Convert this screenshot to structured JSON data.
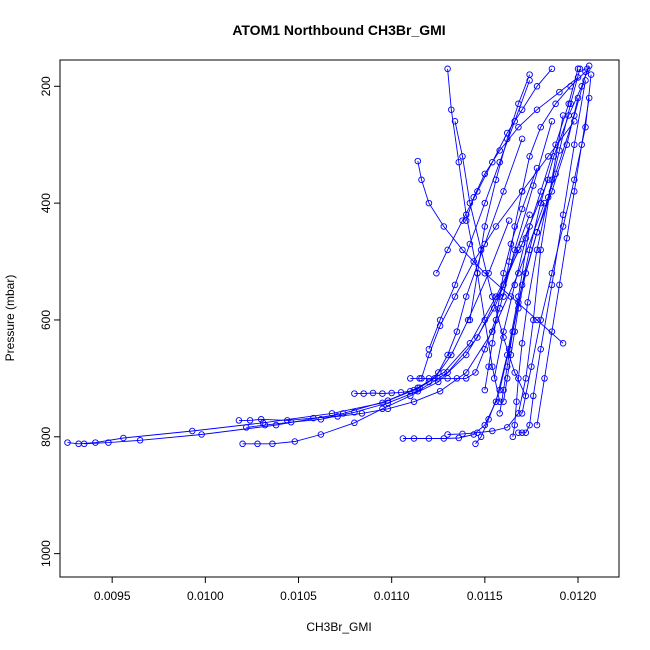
{
  "chart_data": {
    "type": "scatter",
    "title": "ATOM1 Northbound CH3Br_GMI",
    "xlabel": "CH3Br_GMI",
    "ylabel": "Pressure (mbar)",
    "xlim": [
      0.00922,
      0.01222
    ],
    "ylim": [
      1040,
      155
    ],
    "y_reversed": true,
    "grid": false,
    "legend": "none",
    "color": "#0000ff",
    "marker": "open-circle",
    "connected_lines": true,
    "x_ticks": [
      "0.0095",
      "0.0100",
      "0.0105",
      "0.0110",
      "0.0115",
      "0.0120"
    ],
    "x_tick_values": [
      0.0095,
      0.01,
      0.0105,
      0.011,
      0.0115,
      0.012
    ],
    "y_ticks": [
      "200",
      "400",
      "600",
      "800",
      "1000"
    ],
    "y_tick_values": [
      200,
      400,
      600,
      800,
      1000
    ],
    "series": [
      {
        "x": [
          0.00926,
          0.00932,
          0.00941,
          0.00956,
          0.00993,
          0.01031,
          0.01068,
          0.01095,
          0.01112,
          0.01123,
          0.01132,
          0.01141,
          0.01152,
          0.01163
        ],
        "y": [
          810,
          812,
          810,
          802,
          790,
          776,
          760,
          742,
          720,
          700,
          660,
          600,
          520,
          430
        ]
      },
      {
        "x": [
          0.00935,
          0.00948,
          0.00965,
          0.00998,
          0.01038,
          0.01074,
          0.01098,
          0.01114,
          0.01128,
          0.01142,
          0.01156,
          0.0117,
          0.01184
        ],
        "y": [
          812,
          810,
          806,
          796,
          780,
          760,
          738,
          716,
          690,
          640,
          560,
          470,
          360
        ]
      },
      {
        "x": [
          0.0102,
          0.01028,
          0.01036,
          0.01048,
          0.01062,
          0.0108,
          0.01095,
          0.0111,
          0.01125,
          0.0114,
          0.01155,
          0.01168
        ],
        "y": [
          812,
          812,
          812,
          808,
          796,
          776,
          752,
          730,
          706,
          660,
          580,
          480
        ]
      },
      {
        "x": [
          0.01018,
          0.01024,
          0.0103,
          0.01044,
          0.01058,
          0.01071,
          0.01084,
          0.01098,
          0.01112,
          0.01126,
          0.0114,
          0.01154,
          0.01168,
          0.01182
        ],
        "y": [
          772,
          772,
          770,
          772,
          768,
          765,
          760,
          752,
          740,
          722,
          690,
          620,
          520,
          400
        ]
      },
      {
        "x": [
          0.01022,
          0.01032,
          0.01046,
          0.01062,
          0.0108,
          0.01098,
          0.01114,
          0.0113,
          0.01146,
          0.0116,
          0.01174
        ],
        "y": [
          784,
          780,
          775,
          770,
          758,
          742,
          722,
          690,
          630,
          540,
          420
        ]
      },
      {
        "x": [
          0.0108,
          0.01085,
          0.0109,
          0.01095,
          0.011,
          0.01105,
          0.0111,
          0.01115,
          0.0112,
          0.01125,
          0.0113,
          0.01135,
          0.0114,
          0.0115,
          0.0116,
          0.0117
        ],
        "y": [
          726,
          726,
          725,
          726,
          725,
          724,
          722,
          716,
          706,
          690,
          660,
          620,
          560,
          470,
          380,
          290
        ]
      },
      {
        "x": [
          0.0111,
          0.01115,
          0.0112,
          0.01125,
          0.0113,
          0.01135,
          0.0114,
          0.01145,
          0.0115,
          0.01158,
          0.01166,
          0.01176,
          0.01186
        ],
        "y": [
          700,
          700,
          700,
          700,
          700,
          700,
          700,
          690,
          650,
          580,
          480,
          370,
          260
        ]
      },
      {
        "x": [
          0.01106,
          0.01112,
          0.0112,
          0.01128,
          0.01136,
          0.01144,
          0.0115,
          0.01156,
          0.01162,
          0.01168,
          0.01174
        ],
        "y": [
          803,
          803,
          803,
          803,
          802,
          796,
          780,
          740,
          660,
          560,
          440
        ]
      },
      {
        "x": [
          0.0113,
          0.01138,
          0.01146,
          0.01154,
          0.01162,
          0.01168,
          0.01172,
          0.01176,
          0.0118,
          0.01186,
          0.01192
        ],
        "y": [
          796,
          795,
          793,
          790,
          784,
          760,
          700,
          600,
          480,
          360,
          250
        ]
      },
      {
        "x": [
          0.01145,
          0.01148,
          0.01152,
          0.01158,
          0.01163,
          0.01168,
          0.01174,
          0.0118,
          0.01187,
          0.01195,
          0.01202,
          0.01206
        ],
        "y": [
          812,
          800,
          770,
          720,
          650,
          570,
          480,
          400,
          320,
          250,
          200,
          165
        ]
      },
      {
        "x": [
          0.01165,
          0.01166,
          0.01167,
          0.01168,
          0.0117,
          0.01173,
          0.01178,
          0.01184,
          0.0119,
          0.01196,
          0.01201
        ],
        "y": [
          800,
          780,
          740,
          700,
          640,
          570,
          480,
          390,
          310,
          230,
          170
        ]
      },
      {
        "x": [
          0.01168,
          0.0117,
          0.01172,
          0.01174,
          0.01176,
          0.0118,
          0.01186,
          0.01192,
          0.01198,
          0.01204
        ],
        "y": [
          793,
          793,
          793,
          780,
          730,
          650,
          540,
          420,
          300,
          190
        ]
      },
      {
        "x": [
          0.01158,
          0.0116,
          0.01162,
          0.01165,
          0.0117,
          0.01178,
          0.01188,
          0.01198,
          0.01205
        ],
        "y": [
          760,
          720,
          680,
          620,
          540,
          450,
          350,
          250,
          170
        ]
      },
      {
        "x": [
          0.01114,
          0.01116,
          0.0112,
          0.01128,
          0.01138,
          0.0115,
          0.01164,
          0.01178,
          0.01192
        ],
        "y": [
          328,
          360,
          400,
          440,
          480,
          520,
          560,
          600,
          640
        ]
      },
      {
        "x": [
          0.0113,
          0.01132,
          0.01136,
          0.0114,
          0.01146,
          0.0115,
          0.01154,
          0.01158
        ],
        "y": [
          170,
          240,
          330,
          420,
          520,
          600,
          680,
          740
        ]
      },
      {
        "x": [
          0.01134,
          0.01138,
          0.01142,
          0.01148,
          0.01154,
          0.0116,
          0.01166,
          0.01172
        ],
        "y": [
          260,
          320,
          400,
          480,
          560,
          630,
          690,
          730
        ]
      },
      {
        "x": [
          0.01155,
          0.0116,
          0.01166,
          0.01172,
          0.0118,
          0.01188,
          0.01195,
          0.012
        ],
        "y": [
          700,
          620,
          540,
          460,
          380,
          300,
          230,
          170
        ]
      },
      {
        "x": [
          0.0117,
          0.01175,
          0.0118,
          0.01186,
          0.01192,
          0.01198,
          0.01204,
          0.01207
        ],
        "y": [
          760,
          680,
          600,
          520,
          440,
          360,
          270,
          180
        ]
      },
      {
        "x": [
          0.01142,
          0.01146,
          0.0115,
          0.01156,
          0.01162,
          0.01168,
          0.01174
        ],
        "y": [
          600,
          520,
          440,
          360,
          290,
          230,
          180
        ]
      },
      {
        "x": [
          0.0112,
          0.01126,
          0.01134,
          0.01142,
          0.0115,
          0.01158,
          0.01166,
          0.01174
        ],
        "y": [
          650,
          600,
          540,
          470,
          400,
          330,
          260,
          190
        ]
      },
      {
        "x": [
          0.0116,
          0.01162,
          0.01164,
          0.01166,
          0.01168,
          0.01172,
          0.01178,
          0.01186,
          0.01194,
          0.012
        ],
        "y": [
          740,
          700,
          660,
          620,
          580,
          520,
          450,
          380,
          300,
          220
        ]
      },
      {
        "x": [
          0.01178,
          0.01182,
          0.01186,
          0.0119,
          0.01194,
          0.01198,
          0.01202,
          0.01206
        ],
        "y": [
          780,
          700,
          620,
          540,
          460,
          380,
          300,
          220
        ]
      },
      {
        "x": [
          0.0115,
          0.01152,
          0.01154,
          0.01156,
          0.01158,
          0.0116,
          0.01164,
          0.0117,
          0.01178
        ],
        "y": [
          720,
          680,
          640,
          600,
          560,
          520,
          470,
          410,
          340
        ]
      },
      {
        "x": [
          0.01124,
          0.0113,
          0.01138,
          0.01146,
          0.01154,
          0.01162,
          0.0117,
          0.01178,
          0.01186
        ],
        "y": [
          520,
          480,
          430,
          380,
          330,
          280,
          240,
          200,
          170
        ]
      },
      {
        "x": [
          0.0114,
          0.01144,
          0.0115,
          0.01158,
          0.01168,
          0.01178,
          0.0119,
          0.012
        ],
        "y": [
          430,
          390,
          350,
          310,
          270,
          240,
          210,
          185
        ]
      },
      {
        "x": [
          0.0116,
          0.01163,
          0.01166,
          0.0117,
          0.01174,
          0.0118,
          0.01188,
          0.01196,
          0.01204
        ],
        "y": [
          560,
          500,
          440,
          380,
          320,
          270,
          230,
          200,
          175
        ]
      },
      {
        "x": [
          0.01116,
          0.0112,
          0.01126,
          0.01134,
          0.01144,
          0.01156,
          0.0117,
          0.01184,
          0.01198
        ],
        "y": [
          700,
          660,
          610,
          560,
          500,
          440,
          380,
          320,
          260
        ]
      }
    ]
  }
}
